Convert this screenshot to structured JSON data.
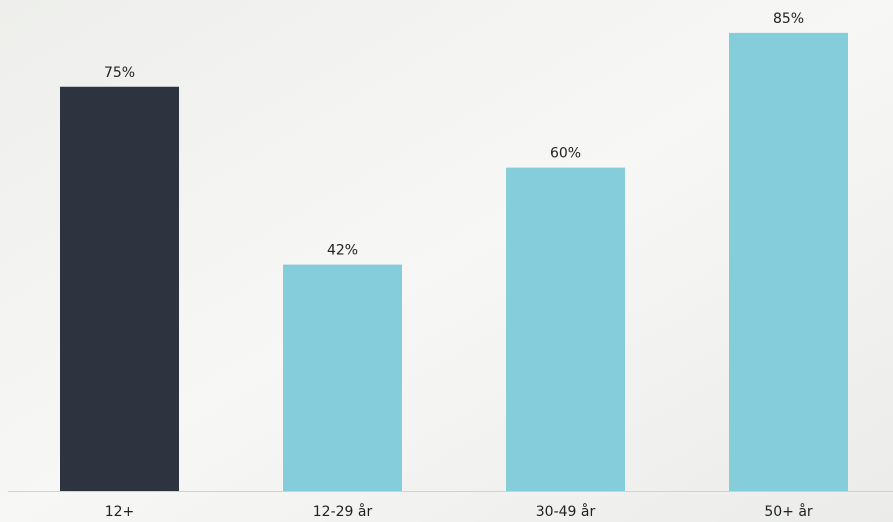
{
  "chart_data": {
    "type": "bar",
    "categories": [
      "12+",
      "12-29 år",
      "30-49 år",
      "50+ år"
    ],
    "values": [
      75,
      42,
      60,
      85
    ],
    "value_labels": [
      "75%",
      "42%",
      "60%",
      "85%"
    ],
    "colors": [
      "#2d3440",
      "#86cddc",
      "#86cddc",
      "#86cddc"
    ]
  }
}
